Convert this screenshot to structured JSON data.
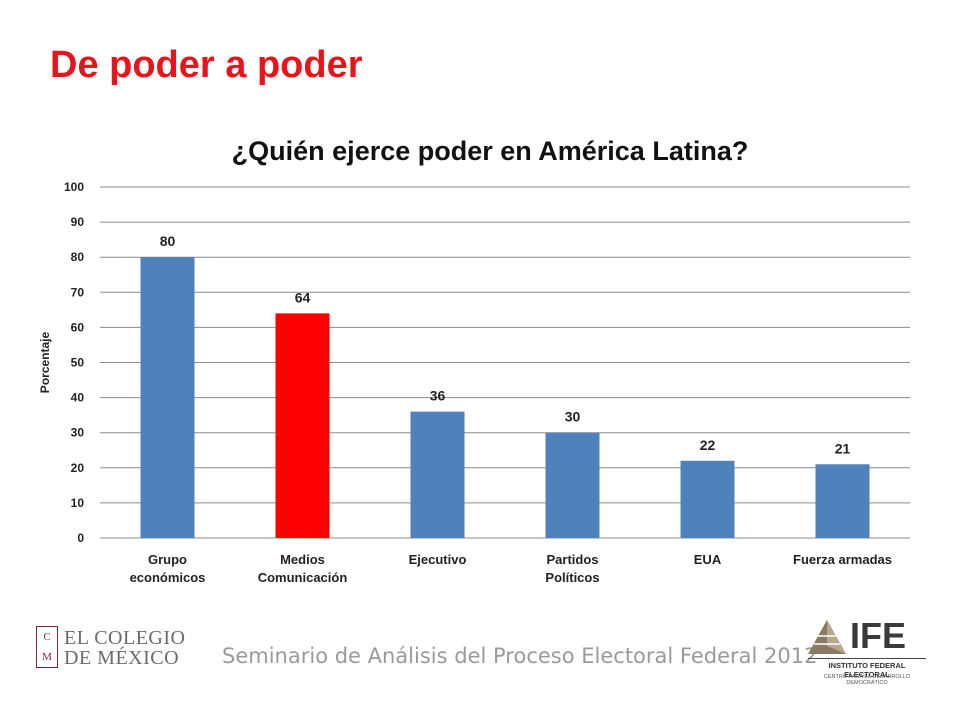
{
  "slide_title": "De poder a poder",
  "footer": "Seminario de Análisis del Proceso Electoral Federal 2012",
  "logos": {
    "colmex": {
      "name_line1": "EL COLEGIO",
      "name_line2": "DE MÉXICO",
      "seal_letters": [
        "C",
        "M"
      ]
    },
    "ife": {
      "acronym": "IFE",
      "institution": "INSTITUTO FEDERAL ELECTORAL",
      "subtitle": "CENTRO PARA EL DESARROLLO DEMOCRÁTICO"
    }
  },
  "colors": {
    "title": "#e8141b",
    "bar": "#4f81bd",
    "highlight": "#ff0000"
  },
  "chart_data": {
    "type": "bar",
    "title": "¿Quién ejerce poder en América Latina?",
    "xlabel": "",
    "ylabel": "Porcentaje",
    "ylim": [
      0,
      100
    ],
    "yticks": [
      0,
      10,
      20,
      30,
      40,
      50,
      60,
      70,
      80,
      90,
      100
    ],
    "grid": true,
    "legend": "none",
    "categories": [
      [
        "Grupo",
        "económicos"
      ],
      [
        "Medios",
        "Comunicación"
      ],
      [
        "Ejecutivo"
      ],
      [
        "Partidos",
        "Políticos"
      ],
      [
        "EUA"
      ],
      [
        "Fuerza armadas"
      ]
    ],
    "values": [
      80,
      64,
      36,
      30,
      22,
      21
    ],
    "highlight_index": 1
  }
}
